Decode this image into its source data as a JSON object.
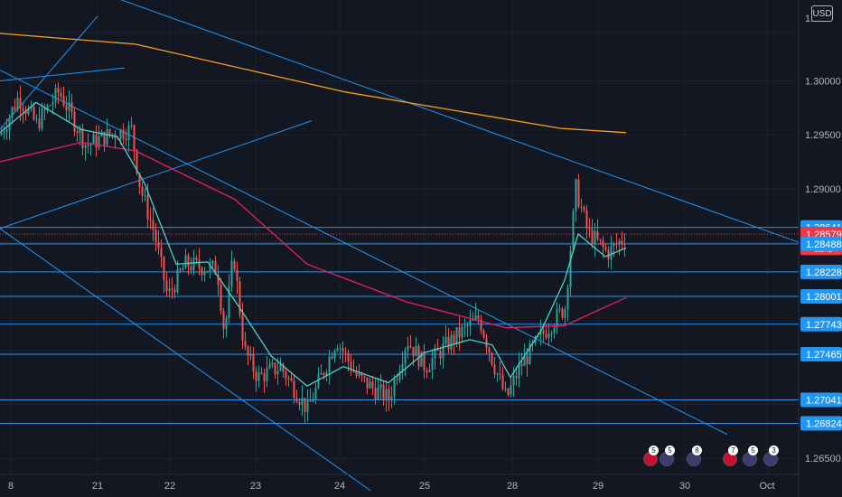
{
  "currency": "USD",
  "countdown": "11:14",
  "colors": {
    "background": "#131722",
    "up": "#26a69a",
    "down": "#ef5350",
    "trendline": "#2962ff",
    "hline": "#2196f3",
    "ma200": "#f7a21b",
    "ma_slow": "#e91e63",
    "ma_fast": "#4dd0c8",
    "current_price": "#f23645"
  },
  "chart_data": {
    "type": "candlestick",
    "symbol_quote": "USD",
    "x_ticks": [
      "8",
      "21",
      "22",
      "23",
      "24",
      "25",
      "28",
      "29",
      "30",
      "Oct"
    ],
    "y_ticks": [
      "1.30000",
      "1.29500",
      "1.29000",
      "1.26500"
    ],
    "ylim": [
      1.2635,
      1.3075
    ],
    "horizontal_levels": [
      1.28641,
      1.28488,
      1.28228,
      1.28001,
      1.27743,
      1.27465,
      1.27041,
      1.26824
    ],
    "price_tags": [
      {
        "label": "1.28641",
        "value": 1.28641,
        "style": "level"
      },
      {
        "label": "1.28579",
        "value": 1.28579,
        "style": "current"
      },
      {
        "label": "11:14",
        "value": 1.2845,
        "style": "countdown"
      },
      {
        "label": "1.28488",
        "value": 1.28488,
        "style": "level"
      },
      {
        "label": "1.28228",
        "value": 1.28228,
        "style": "level"
      },
      {
        "label": "1.28001",
        "value": 1.28001,
        "style": "level"
      },
      {
        "label": "1.27743",
        "value": 1.27743,
        "style": "level"
      },
      {
        "label": "1.27465",
        "value": 1.27465,
        "style": "level"
      },
      {
        "label": "1.27041",
        "value": 1.27041,
        "style": "level"
      },
      {
        "label": "1.26824",
        "value": 1.26824,
        "style": "level"
      }
    ],
    "trendlines": [
      {
        "x0": 0,
        "y0": 1.2863,
        "x1": 345,
        "y1": 1.2963
      },
      {
        "x0": 0,
        "y0": 1.2955,
        "x1": 108,
        "y1": 1.306
      },
      {
        "x0": 0,
        "y0": 1.3,
        "x1": 138,
        "y1": 1.3012
      },
      {
        "x0": 118,
        "y0": 1.308,
        "x1": 885,
        "y1": 1.285
      },
      {
        "x0": 0,
        "y0": 1.301,
        "x1": 805,
        "y1": 1.2672
      },
      {
        "x0": 0,
        "y0": 1.2863,
        "x1": 410,
        "y1": 1.262
      }
    ],
    "moving_averages": [
      {
        "name": "ma200",
        "points": [
          [
            0,
            1.3044
          ],
          [
            150,
            1.3034
          ],
          [
            380,
            1.299
          ],
          [
            620,
            1.2956
          ],
          [
            693,
            1.2952
          ]
        ]
      },
      {
        "name": "ma_slow",
        "points": [
          [
            0,
            1.2925
          ],
          [
            90,
            1.2943
          ],
          [
            150,
            1.2935
          ],
          [
            260,
            1.289
          ],
          [
            340,
            1.283
          ],
          [
            450,
            1.2795
          ],
          [
            560,
            1.2771
          ],
          [
            625,
            1.2773
          ],
          [
            693,
            1.2799
          ]
        ]
      },
      {
        "name": "ma_fast",
        "points": [
          [
            0,
            1.2952
          ],
          [
            40,
            1.298
          ],
          [
            90,
            1.2955
          ],
          [
            130,
            1.2948
          ],
          [
            160,
            1.2905
          ],
          [
            195,
            1.283
          ],
          [
            230,
            1.2832
          ],
          [
            265,
            1.279
          ],
          [
            300,
            1.2745
          ],
          [
            340,
            1.2717
          ],
          [
            380,
            1.2735
          ],
          [
            430,
            1.272
          ],
          [
            470,
            1.2748
          ],
          [
            520,
            1.276
          ],
          [
            545,
            1.2755
          ],
          [
            565,
            1.2725
          ],
          [
            600,
            1.277
          ],
          [
            625,
            1.2815
          ],
          [
            640,
            1.2858
          ],
          [
            670,
            1.2837
          ],
          [
            693,
            1.2845
          ]
        ]
      }
    ],
    "candle_path": [
      [
        0,
        1.295
      ],
      [
        20,
        1.2985
      ],
      [
        40,
        1.296
      ],
      [
        65,
        1.299
      ],
      [
        95,
        1.294
      ],
      [
        120,
        1.295
      ],
      [
        145,
        1.2955
      ],
      [
        155,
        1.29
      ],
      [
        170,
        1.286
      ],
      [
        185,
        1.28
      ],
      [
        205,
        1.283
      ],
      [
        240,
        1.2825
      ],
      [
        248,
        1.2765
      ],
      [
        258,
        1.284
      ],
      [
        270,
        1.275
      ],
      [
        285,
        1.2725
      ],
      [
        310,
        1.2735
      ],
      [
        340,
        1.2695
      ],
      [
        372,
        1.276
      ],
      [
        395,
        1.2725
      ],
      [
        430,
        1.2705
      ],
      [
        450,
        1.276
      ],
      [
        470,
        1.2735
      ],
      [
        500,
        1.276
      ],
      [
        530,
        1.278
      ],
      [
        545,
        1.274
      ],
      [
        560,
        1.2705
      ],
      [
        575,
        1.2735
      ],
      [
        600,
        1.2765
      ],
      [
        625,
        1.279
      ],
      [
        637,
        1.29
      ],
      [
        650,
        1.286
      ],
      [
        672,
        1.284
      ],
      [
        693,
        1.2857
      ]
    ],
    "events": [
      {
        "slot": 1,
        "count": "5",
        "flag": "uk"
      },
      {
        "slot": 2,
        "count": "5",
        "flag": "us"
      },
      {
        "slot": 3,
        "count": "8",
        "flag": "us"
      },
      {
        "slot": 4,
        "count": "7",
        "flag": "uk"
      },
      {
        "slot": 5,
        "count": "5",
        "flag": "us"
      },
      {
        "slot": 6,
        "count": "3",
        "flag": "us"
      }
    ]
  }
}
